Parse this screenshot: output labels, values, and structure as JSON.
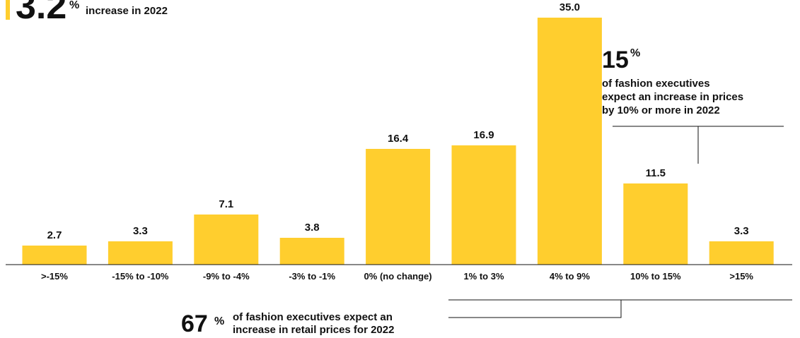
{
  "chart_data": {
    "type": "bar",
    "categories": [
      ">-15%",
      "-15% to -10%",
      "-9% to -4%",
      "-3% to -1%",
      "0% (no change)",
      "1% to 3%",
      "4% to 9%",
      "10% to 15%",
      ">15%"
    ],
    "values": [
      2.7,
      3.3,
      7.1,
      3.8,
      16.4,
      16.9,
      35.0,
      11.5,
      3.3
    ],
    "value_labels": [
      "2.7",
      "3.3",
      "7.1",
      "3.8",
      "16.4",
      "16.9",
      "35.0",
      "11.5",
      "3.3"
    ],
    "ylim": [
      0,
      35
    ],
    "grid": false,
    "legend": "none",
    "bar_color": "#FFCE2E",
    "text_color": "#111111"
  },
  "annotations": {
    "top_left": {
      "number": "3.2",
      "suffix": "%",
      "text_line2": "increase in 2022",
      "accent_color": "#FFCE2E"
    },
    "callout_15": {
      "number": "15",
      "suffix": "%",
      "lines": [
        "of fashion executives",
        "expect an increase in prices",
        "by 10% or more in 2022"
      ]
    },
    "callout_67": {
      "number": "67",
      "suffix": "%",
      "lines": [
        "of fashion executives expect an",
        "increase in retail prices for 2022"
      ]
    }
  }
}
